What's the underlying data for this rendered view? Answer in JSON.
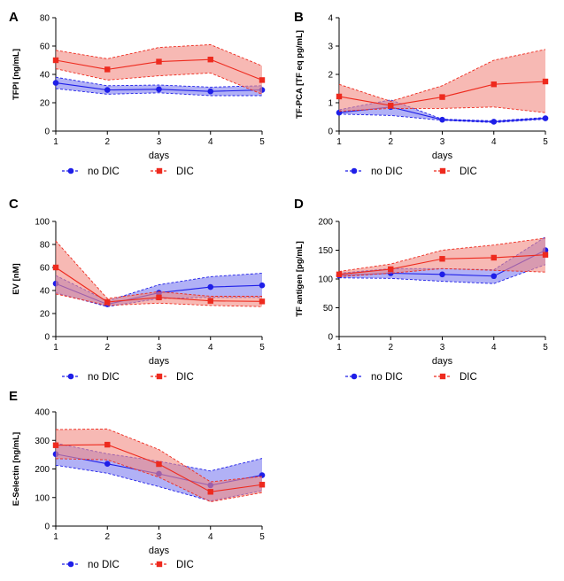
{
  "colors": {
    "no_dic": "#1f1fe8",
    "dic": "#ee2a1e",
    "no_dic_fill": "#7d7df0",
    "dic_fill": "#f28b82"
  },
  "chart_data": [
    {
      "type": "line",
      "letter": "A",
      "ylabel": "TFPI [ng/mL]",
      "xlabel": "days",
      "x": [
        1,
        2,
        3,
        4,
        5
      ],
      "ylim": [
        0,
        80
      ],
      "yticks": [
        0,
        20,
        40,
        60,
        80
      ],
      "series": [
        {
          "name": "no DIC",
          "marker": "circle",
          "values": [
            34,
            29,
            29.5,
            28,
            29
          ],
          "lower": [
            30,
            26,
            27,
            25,
            25
          ],
          "upper": [
            38,
            32,
            32.5,
            31,
            32
          ]
        },
        {
          "name": "DIC",
          "marker": "square",
          "values": [
            50,
            43.5,
            49,
            50.5,
            36
          ],
          "lower": [
            44,
            36,
            39,
            41,
            26
          ],
          "upper": [
            57,
            51,
            59,
            61,
            46
          ]
        }
      ]
    },
    {
      "type": "line",
      "letter": "B",
      "ylabel": "TF-PCA [TF eq pg/mL]",
      "xlabel": "days",
      "x": [
        1,
        2,
        3,
        4,
        5
      ],
      "ylim": [
        0,
        4
      ],
      "yticks": [
        0,
        1,
        2,
        3,
        4
      ],
      "series": [
        {
          "name": "no DIC",
          "marker": "circle",
          "values": [
            0.65,
            0.85,
            0.4,
            0.33,
            0.45
          ],
          "lower": [
            0.6,
            0.55,
            0.38,
            0.3,
            0.42
          ],
          "upper": [
            0.75,
            1.1,
            0.42,
            0.36,
            0.48
          ]
        },
        {
          "name": "DIC",
          "marker": "square",
          "values": [
            1.22,
            0.9,
            1.2,
            1.65,
            1.75
          ],
          "lower": [
            0.7,
            0.8,
            0.8,
            0.85,
            0.65
          ],
          "upper": [
            1.65,
            1.05,
            1.6,
            2.5,
            2.88
          ]
        }
      ]
    },
    {
      "type": "line",
      "letter": "C",
      "ylabel": "EV [nM]",
      "xlabel": "days",
      "x": [
        1,
        2,
        3,
        4,
        5
      ],
      "ylim": [
        0,
        100
      ],
      "yticks": [
        0,
        20,
        40,
        60,
        80,
        100
      ],
      "series": [
        {
          "name": "no DIC",
          "marker": "circle",
          "values": [
            46,
            28,
            38,
            43,
            44.5
          ],
          "lower": [
            38,
            26,
            33,
            34,
            34
          ],
          "upper": [
            53,
            31,
            45,
            52,
            55
          ]
        },
        {
          "name": "DIC",
          "marker": "square",
          "values": [
            60,
            30,
            34,
            31,
            30.5
          ],
          "lower": [
            37,
            27,
            29,
            27,
            26
          ],
          "upper": [
            83,
            33,
            39,
            35,
            35
          ]
        }
      ]
    },
    {
      "type": "line",
      "letter": "D",
      "ylabel": "TF antigen [pg/mL]",
      "xlabel": "days",
      "x": [
        1,
        2,
        3,
        4,
        5
      ],
      "ylim": [
        0,
        200
      ],
      "yticks": [
        0,
        50,
        100,
        150,
        200
      ],
      "series": [
        {
          "name": "no DIC",
          "marker": "circle",
          "values": [
            106,
            110,
            108,
            105,
            150
          ],
          "lower": [
            102,
            101,
            96,
            92,
            125
          ],
          "upper": [
            110,
            118,
            118,
            116,
            173
          ]
        },
        {
          "name": "DIC",
          "marker": "square",
          "values": [
            108,
            117,
            135,
            137,
            142
          ],
          "lower": [
            104,
            110,
            118,
            115,
            112
          ],
          "upper": [
            113,
            126,
            150,
            159,
            171
          ]
        }
      ]
    },
    {
      "type": "line",
      "letter": "E",
      "ylabel": "E-Selectin [ng/mL]",
      "xlabel": "days",
      "x": [
        1,
        2,
        3,
        4,
        5
      ],
      "ylim": [
        0,
        400
      ],
      "yticks": [
        0,
        100,
        200,
        300,
        400
      ],
      "series": [
        {
          "name": "no DIC",
          "marker": "circle",
          "values": [
            252,
            218,
            183,
            143,
            178
          ],
          "lower": [
            213,
            185,
            138,
            88,
            124
          ],
          "upper": [
            290,
            253,
            227,
            193,
            237
          ]
        },
        {
          "name": "DIC",
          "marker": "square",
          "values": [
            283,
            285,
            217,
            120,
            145
          ],
          "lower": [
            236,
            232,
            171,
            85,
            117
          ],
          "upper": [
            338,
            340,
            268,
            155,
            174
          ]
        }
      ]
    }
  ]
}
